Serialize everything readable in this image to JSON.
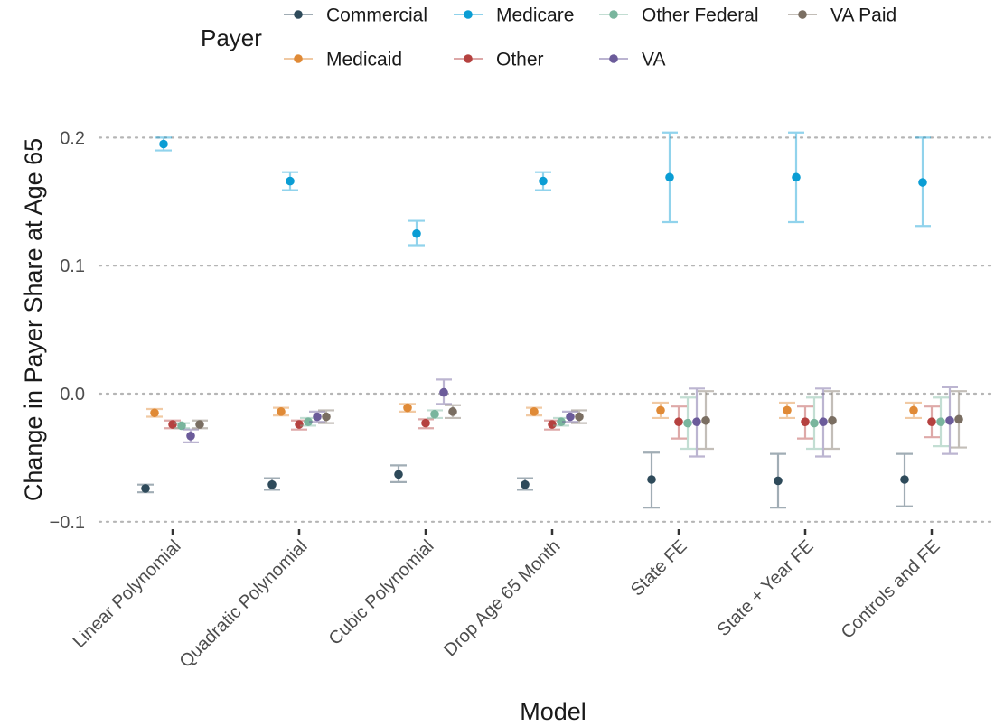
{
  "chart_data": {
    "type": "scatter",
    "subtype": "point-range with error bars",
    "xlabel": "Model",
    "ylabel": "Change in Payer Share at Age 65",
    "categories": [
      "Linear Polynomial",
      "Quadratic Polynomial",
      "Cubic Polynomial",
      "Drop Age 65 Month",
      "State FE",
      "State + Year FE",
      "Controls and FE"
    ],
    "yticks": [
      {
        "value": 0.2,
        "label": "0.2"
      },
      {
        "value": 0.1,
        "label": "0.1"
      },
      {
        "value": 0.0,
        "label": "0.0"
      },
      {
        "value": -0.1,
        "label": "−0.1"
      }
    ],
    "ylim": [
      -0.108,
      0.215
    ],
    "grid": "horizontal dotted at major ticks",
    "legend": {
      "title": "Payer",
      "placement": "top",
      "entries": [
        "Commercial",
        "Medicare",
        "Other Federal",
        "VA Paid",
        "Medicaid",
        "Other",
        "VA"
      ]
    },
    "series": [
      {
        "name": "Commercial",
        "color": "#2e4a5a",
        "values": [
          -0.074,
          -0.071,
          -0.063,
          -0.071,
          -0.067,
          -0.068,
          -0.067
        ],
        "lower": [
          -0.077,
          -0.075,
          -0.069,
          -0.075,
          -0.089,
          -0.089,
          -0.088
        ],
        "upper": [
          -0.071,
          -0.066,
          -0.056,
          -0.066,
          -0.046,
          -0.047,
          -0.047
        ]
      },
      {
        "name": "Medicaid",
        "color": "#e08a36",
        "values": [
          -0.015,
          -0.014,
          -0.011,
          -0.014,
          -0.013,
          -0.013,
          -0.013
        ],
        "lower": [
          -0.018,
          -0.017,
          -0.014,
          -0.017,
          -0.019,
          -0.019,
          -0.019
        ],
        "upper": [
          -0.012,
          -0.011,
          -0.008,
          -0.011,
          -0.007,
          -0.007,
          -0.007
        ]
      },
      {
        "name": "Medicare",
        "color": "#0a9dd4",
        "values": [
          0.195,
          0.166,
          0.125,
          0.166,
          0.169,
          0.169,
          0.165
        ],
        "lower": [
          0.19,
          0.159,
          0.116,
          0.159,
          0.134,
          0.134,
          0.131
        ],
        "upper": [
          0.2,
          0.173,
          0.135,
          0.173,
          0.204,
          0.204,
          0.2
        ]
      },
      {
        "name": "Other",
        "color": "#b5413f",
        "values": [
          -0.024,
          -0.024,
          -0.023,
          -0.024,
          -0.022,
          -0.022,
          -0.022
        ],
        "lower": [
          -0.027,
          -0.028,
          -0.027,
          -0.028,
          -0.035,
          -0.035,
          -0.034
        ],
        "upper": [
          -0.021,
          -0.021,
          -0.02,
          -0.021,
          -0.01,
          -0.01,
          -0.01
        ]
      },
      {
        "name": "Other Federal",
        "color": "#79b59d",
        "values": [
          -0.025,
          -0.022,
          -0.016,
          -0.022,
          -0.023,
          -0.023,
          -0.022
        ],
        "lower": [
          -0.027,
          -0.025,
          -0.019,
          -0.025,
          -0.043,
          -0.043,
          -0.041
        ],
        "upper": [
          -0.023,
          -0.019,
          -0.013,
          -0.019,
          -0.003,
          -0.003,
          -0.003
        ]
      },
      {
        "name": "VA",
        "color": "#6b5b9a",
        "values": [
          -0.033,
          -0.018,
          0.001,
          -0.018,
          -0.022,
          -0.022,
          -0.021
        ],
        "lower": [
          -0.038,
          -0.022,
          -0.008,
          -0.022,
          -0.049,
          -0.049,
          -0.047
        ],
        "upper": [
          -0.028,
          -0.014,
          0.011,
          -0.014,
          0.004,
          0.004,
          0.005
        ]
      },
      {
        "name": "VA Paid",
        "color": "#7a6e62",
        "values": [
          -0.024,
          -0.018,
          -0.014,
          -0.018,
          -0.021,
          -0.021,
          -0.02
        ],
        "lower": [
          -0.027,
          -0.023,
          -0.019,
          -0.023,
          -0.043,
          -0.043,
          -0.042
        ],
        "upper": [
          -0.021,
          -0.013,
          -0.009,
          -0.013,
          0.002,
          0.002,
          0.002
        ]
      }
    ]
  }
}
